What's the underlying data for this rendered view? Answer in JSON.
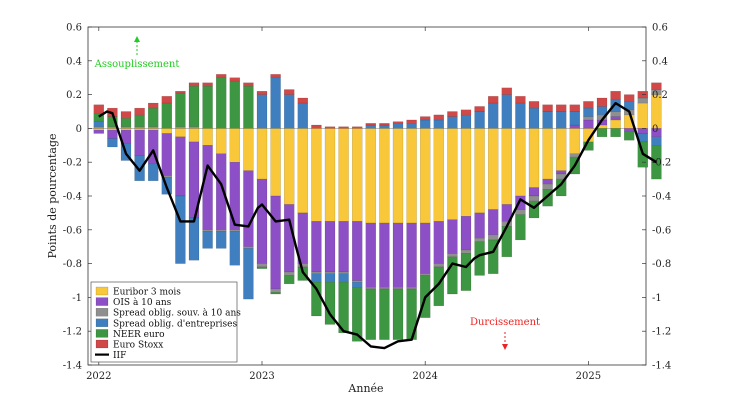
{
  "chart_data": {
    "type": "bar",
    "stacked": true,
    "xlabel": "Année",
    "ylabel": "Points de pourcentage",
    "ylim": [
      -1.4,
      0.6
    ],
    "yticks": [
      -1.4,
      -1.2,
      -1,
      -0.8,
      -0.6,
      -0.4,
      -0.2,
      0,
      0.2,
      0.4,
      0.6
    ],
    "ytick_labels": [
      "-1.4",
      "-1.2",
      "-1",
      "-0.8",
      "-0.6",
      "-0.4",
      "-0.2",
      "0",
      "0.2",
      "0.4",
      "0.6"
    ],
    "xticks": [
      {
        "pos": 0.5,
        "label": "2022"
      },
      {
        "pos": 12.5,
        "label": "2023"
      },
      {
        "pos": 24.5,
        "label": "2024"
      },
      {
        "pos": 36.5,
        "label": "2025"
      }
    ],
    "annotations": {
      "up": "Assouplissement",
      "down": "Durcissement"
    },
    "colors": {
      "euribor": "#F9C83A",
      "ois": "#8C4FC5",
      "spread_souv": "#8F8F8F",
      "spread_ent": "#3F7FBF",
      "neer": "#3D9641",
      "eurostoxx": "#D04848",
      "iif": "#000000",
      "up_arrow": "#22CC22",
      "down_arrow": "#EE2222"
    },
    "legend": [
      {
        "key": "euribor",
        "label": "Euribor 3 mois"
      },
      {
        "key": "ois",
        "label": "OIS à 10 ans"
      },
      {
        "key": "spread_souv",
        "label": "Spread oblig. souv. à 10 ans"
      },
      {
        "key": "spread_ent",
        "label": "Spread oblig. d'entreprises"
      },
      {
        "key": "neer",
        "label": "NEER euro"
      },
      {
        "key": "eurostoxx",
        "label": "Euro Stoxx"
      },
      {
        "key": "iif",
        "label": "IIF"
      }
    ],
    "series": [
      {
        "key": "euribor",
        "name": "Euribor 3 mois",
        "values": [
          -0.01,
          -0.01,
          -0.01,
          -0.01,
          -0.01,
          -0.03,
          -0.05,
          -0.08,
          -0.1,
          -0.15,
          -0.2,
          -0.25,
          -0.3,
          -0.4,
          -0.45,
          -0.5,
          -0.55,
          -0.55,
          -0.55,
          -0.55,
          -0.56,
          -0.56,
          -0.56,
          -0.56,
          -0.56,
          -0.55,
          -0.54,
          -0.52,
          -0.5,
          -0.48,
          -0.45,
          -0.4,
          -0.35,
          -0.3,
          -0.25,
          -0.15,
          -0.08,
          0.02,
          0.05,
          0.08,
          0.15,
          0.2
        ]
      },
      {
        "key": "ois",
        "name": "OIS à 10 ans",
        "values": [
          -0.02,
          -0.05,
          -0.08,
          -0.15,
          -0.2,
          -0.25,
          -0.35,
          -0.45,
          -0.5,
          -0.45,
          -0.4,
          -0.45,
          -0.5,
          -0.55,
          -0.4,
          -0.3,
          -0.3,
          -0.3,
          -0.3,
          -0.35,
          -0.38,
          -0.38,
          -0.38,
          -0.38,
          -0.3,
          -0.25,
          -0.2,
          -0.2,
          -0.15,
          -0.15,
          -0.1,
          -0.08,
          -0.05,
          -0.03,
          -0.02,
          0.02,
          0.05,
          0.03,
          0.02,
          -0.02,
          -0.03,
          -0.05
        ]
      },
      {
        "key": "spread_souv",
        "name": "Spread oblig. souv. à 10 ans",
        "values": [
          0.01,
          0.01,
          0.01,
          0.01,
          0.01,
          -0.01,
          0.01,
          0.01,
          -0.01,
          -0.01,
          -0.01,
          -0.01,
          -0.02,
          -0.02,
          -0.02,
          -0.02,
          -0.01,
          -0.01,
          -0.01,
          -0.01,
          -0.01,
          -0.01,
          -0.01,
          -0.01,
          -0.01,
          -0.02,
          -0.02,
          -0.02,
          -0.02,
          -0.03,
          -0.03,
          -0.03,
          -0.03,
          -0.03,
          -0.03,
          -0.02,
          0.02,
          0.03,
          0.03,
          0.03,
          0.03,
          0.03
        ]
      },
      {
        "key": "spread_ent",
        "name": "Spread oblig. d'entreprises",
        "values": [
          0.03,
          -0.05,
          -0.1,
          -0.15,
          -0.1,
          -0.1,
          -0.4,
          -0.25,
          -0.1,
          -0.1,
          -0.2,
          -0.3,
          0.2,
          0.3,
          0.2,
          0.15,
          -0.05,
          -0.05,
          -0.05,
          -0.03,
          0.02,
          0.02,
          0.03,
          0.03,
          0.05,
          0.05,
          0.07,
          0.08,
          0.1,
          0.15,
          0.2,
          0.15,
          0.12,
          0.1,
          0.1,
          0.08,
          0.05,
          0.05,
          0.07,
          0.05,
          -0.05,
          -0.05
        ]
      },
      {
        "key": "neer",
        "name": "NEER euro",
        "values": [
          0.05,
          0.06,
          0.05,
          0.07,
          0.11,
          0.15,
          0.2,
          0.24,
          0.25,
          0.3,
          0.28,
          0.25,
          -0.01,
          -0.01,
          -0.05,
          -0.08,
          -0.2,
          -0.25,
          -0.3,
          -0.32,
          -0.3,
          -0.3,
          -0.3,
          -0.3,
          -0.25,
          -0.23,
          -0.22,
          -0.22,
          -0.2,
          -0.2,
          -0.18,
          -0.15,
          -0.1,
          -0.1,
          -0.1,
          -0.1,
          -0.05,
          -0.05,
          -0.05,
          -0.05,
          -0.15,
          -0.2
        ]
      },
      {
        "key": "eurostoxx",
        "name": "Euro Stoxx",
        "values": [
          0.05,
          0.05,
          0.04,
          0.04,
          0.03,
          0.04,
          0.01,
          0.02,
          0.02,
          0.02,
          0.02,
          0.02,
          0.02,
          0.02,
          0.03,
          0.03,
          0.02,
          0.01,
          0.01,
          0.01,
          0.01,
          0.01,
          0.01,
          0.02,
          0.02,
          0.03,
          0.03,
          0.03,
          0.03,
          0.04,
          0.04,
          0.04,
          0.04,
          0.04,
          0.04,
          0.04,
          0.04,
          0.05,
          0.05,
          0.04,
          0.04,
          0.04
        ]
      },
      {
        "key": "iif",
        "name": "IIF",
        "type": "line",
        "x": [
          0,
          0.6,
          1,
          2,
          2.8,
          3,
          4,
          5,
          6,
          7,
          8,
          9,
          10,
          11,
          11.7,
          12,
          13,
          14,
          14.5,
          15,
          16,
          17,
          18,
          19,
          20,
          21,
          22,
          23,
          24,
          25,
          26,
          27,
          27.6,
          28,
          29,
          30,
          31,
          32,
          33,
          34,
          35,
          36,
          37,
          38,
          39,
          40,
          41
        ],
        "values": [
          0.07,
          0.1,
          0.09,
          -0.15,
          -0.23,
          -0.25,
          -0.13,
          -0.35,
          -0.55,
          -0.55,
          -0.22,
          -0.33,
          -0.57,
          -0.58,
          -0.47,
          -0.45,
          -0.55,
          -0.54,
          -0.7,
          -0.85,
          -0.95,
          -1.1,
          -1.2,
          -1.22,
          -1.29,
          -1.3,
          -1.26,
          -1.25,
          -1.0,
          -0.92,
          -0.8,
          -0.82,
          -0.77,
          -0.75,
          -0.73,
          -0.58,
          -0.42,
          -0.47,
          -0.4,
          -0.33,
          -0.22,
          -0.07,
          0.05,
          0.15,
          0.1,
          -0.15,
          -0.2
        ]
      }
    ]
  }
}
